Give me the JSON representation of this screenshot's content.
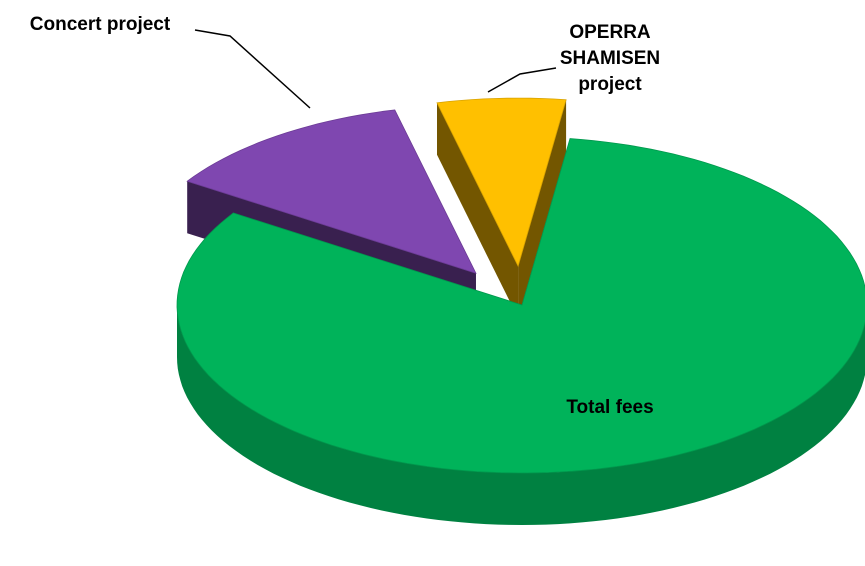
{
  "chart_data": {
    "type": "pie",
    "categories": [
      "Total fees",
      "Concert project",
      "OPERRA SHAMISEN project"
    ],
    "values": [
      82,
      12,
      6
    ],
    "colors": [
      "#00b35a",
      "#7f47b0",
      "#ffc000"
    ],
    "exploded": [
      false,
      true,
      true
    ]
  }
}
